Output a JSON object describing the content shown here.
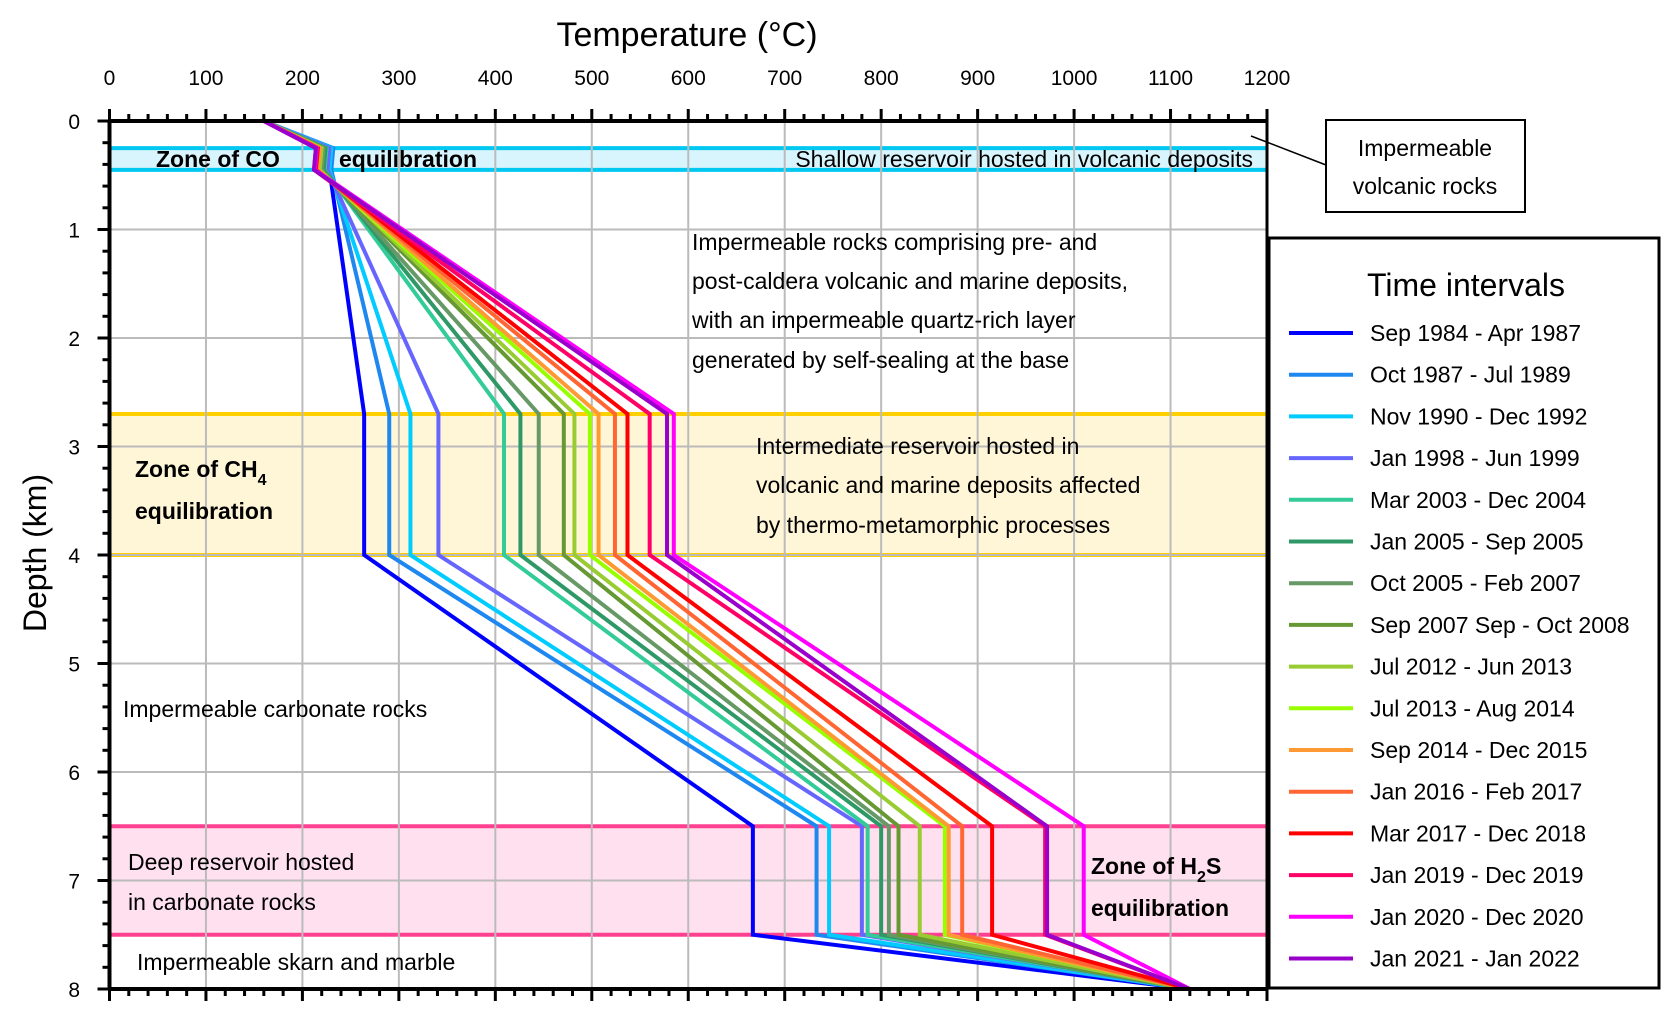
{
  "chart_data": {
    "type": "line",
    "title": "Temperature (°C)",
    "xlabel": "Temperature (°C)",
    "ylabel": "Depth (km)",
    "xlim": [
      0,
      1200
    ],
    "ylim": [
      0,
      8
    ],
    "y_inverted": true,
    "x_ticks": [
      "0",
      "100",
      "200",
      "300",
      "400",
      "500",
      "600",
      "700",
      "800",
      "900",
      "1000",
      "1100",
      "1200"
    ],
    "y_ticks": [
      "0",
      "1",
      "2",
      "3",
      "4",
      "5",
      "6",
      "7",
      "8"
    ],
    "grid": true,
    "legend": {
      "title": "Time intervals",
      "placement": "right"
    },
    "depths": [
      0,
      0.25,
      0.45,
      2.7,
      4.0,
      6.5,
      7.5,
      8.0
    ],
    "series": [
      {
        "name": "Sep 1984 - Apr 1987",
        "color": "#0000ff",
        "temps": [
          160,
          230,
          228,
          264,
          264,
          667,
          667,
          1120
        ]
      },
      {
        "name": "Oct 1987 - Jul 1989",
        "color": "#1e88f0",
        "temps": [
          160,
          232,
          230,
          290,
          290,
          733,
          733,
          1120
        ]
      },
      {
        "name": "Nov 1990 - Dec 1992",
        "color": "#00ccff",
        "temps": [
          160,
          230,
          228,
          312,
          312,
          746,
          746,
          1120
        ]
      },
      {
        "name": "Jan 1998 - Jun 1999",
        "color": "#6666ff",
        "temps": [
          160,
          228,
          226,
          341,
          341,
          780,
          780,
          1120
        ]
      },
      {
        "name": "Mar 2003 - Dec 2004",
        "color": "#33cc99",
        "temps": [
          160,
          225,
          223,
          409,
          409,
          786,
          786,
          1120
        ]
      },
      {
        "name": "Jan 2005 - Sep 2005",
        "color": "#2e9966",
        "temps": [
          160,
          224,
          222,
          426,
          426,
          800,
          800,
          1120
        ]
      },
      {
        "name": "Oct 2005 - Feb 2007",
        "color": "#669966",
        "temps": [
          160,
          222,
          220,
          445,
          445,
          808,
          808,
          1120
        ]
      },
      {
        "name": "Sep 2007 Sep - Oct 2008",
        "color": "#669933",
        "temps": [
          160,
          220,
          218,
          471,
          471,
          818,
          818,
          1120
        ]
      },
      {
        "name": "Jul 2012 - Jun 2013",
        "color": "#99cc33",
        "temps": [
          160,
          220,
          218,
          482,
          482,
          840,
          840,
          1120
        ]
      },
      {
        "name": "Jul 2013 - Aug 2014",
        "color": "#99ff00",
        "temps": [
          160,
          218,
          216,
          498,
          498,
          866,
          866,
          1120
        ]
      },
      {
        "name": "Sep 2014 - Dec 2015",
        "color": "#ff9933",
        "temps": [
          160,
          218,
          216,
          507,
          507,
          870,
          870,
          1120
        ]
      },
      {
        "name": "Jan 2016 - Feb 2017",
        "color": "#ff6633",
        "temps": [
          160,
          216,
          214,
          524,
          524,
          884,
          884,
          1120
        ]
      },
      {
        "name": "Mar 2017 - Dec 2018",
        "color": "#ff0000",
        "temps": [
          160,
          216,
          214,
          537,
          537,
          915,
          915,
          1120
        ]
      },
      {
        "name": "Jan 2019 - Dec 2019",
        "color": "#ff0066",
        "temps": [
          160,
          214,
          212,
          560,
          560,
          970,
          970,
          1120
        ]
      },
      {
        "name": "Jan 2020 - Dec 2020",
        "color": "#ff00ff",
        "temps": [
          160,
          215,
          213,
          585,
          585,
          1010,
          1010,
          1120
        ]
      },
      {
        "name": "Jan 2021 - Jan 2022",
        "color": "#9900cc",
        "temps": [
          160,
          214,
          212,
          578,
          578,
          972,
          972,
          1120
        ]
      }
    ],
    "zones": [
      {
        "name": "co",
        "depth_range": [
          0.25,
          0.45
        ],
        "fill": "#d8f4fc",
        "border": "#00c8f0"
      },
      {
        "name": "ch4",
        "depth_range": [
          2.7,
          4.0
        ],
        "fill": "#fff6d8",
        "border": "#ffd000"
      },
      {
        "name": "h2s",
        "depth_range": [
          6.5,
          7.5
        ],
        "fill": "#ffe0ee",
        "border": "#ff4090"
      }
    ],
    "annotations": {
      "co_zone_a": "Zone of CO",
      "co_zone_b": "equilibration",
      "shallow": "Shallow reservoir hosted in volcanic deposits",
      "impermeable_box_1": "Impermeable",
      "impermeable_box_2": "volcanic rocks",
      "imp_rocks_1": "Impermeable rocks comprising pre- and",
      "imp_rocks_2": "post-caldera volcanic and marine deposits,",
      "imp_rocks_3": "with an impermeable quartz-rich layer",
      "imp_rocks_4": "generated by self-sealing at the base",
      "ch4_zone_a": "Zone of CH",
      "ch4_sub": "4",
      "ch4_zone_b": "equilibration",
      "intermediate_1": "Intermediate reservoir hosted in",
      "intermediate_2": "volcanic and marine deposits affected",
      "intermediate_3": "by thermo-metamorphic processes",
      "carbonate": "Impermeable carbonate rocks",
      "deep_1": "Deep reservoir hosted",
      "deep_2": "in carbonate rocks",
      "h2s_zone_a": "Zone of H",
      "h2s_sub": "2",
      "h2s_zone_a2": "S",
      "h2s_zone_b": "equilibration",
      "skarn": "Impermeable skarn and marble"
    }
  }
}
